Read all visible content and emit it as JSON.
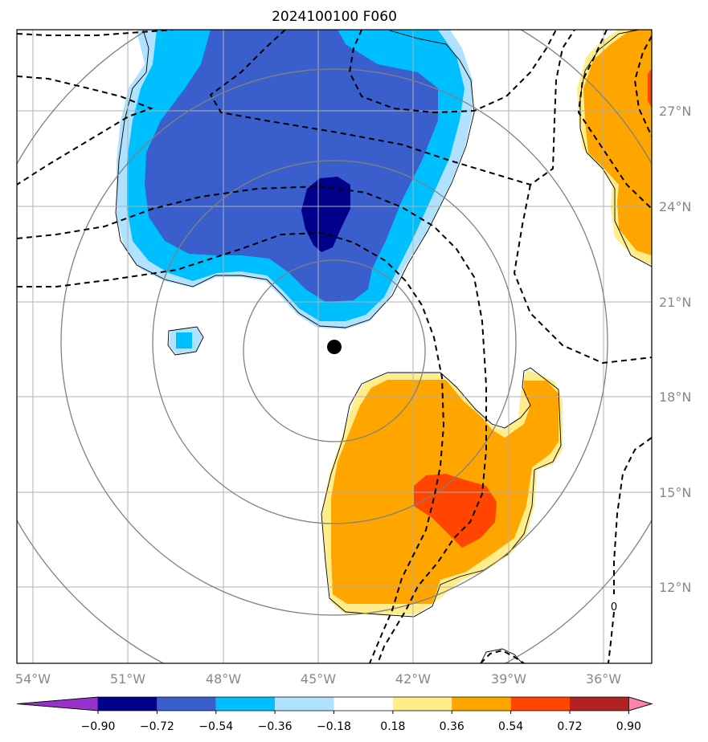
{
  "chart_data": {
    "type": "contour-map",
    "title": "2024100100 F060",
    "x_ticks": [
      "54°W",
      "51°W",
      "48°W",
      "45°W",
      "42°W",
      "39°W",
      "36°W"
    ],
    "y_ticks": [
      "27°N",
      "24°N",
      "21°N",
      "18°N",
      "15°N",
      "12°N"
    ],
    "contour_line_label": "0",
    "colorbar": {
      "levels": [
        -0.9,
        -0.72,
        -0.54,
        -0.36,
        -0.18,
        0.18,
        0.36,
        0.54,
        0.72,
        0.9
      ],
      "labels": [
        "−0.90",
        "−0.72",
        "−0.54",
        "−0.36",
        "−0.18",
        "0.18",
        "0.36",
        "0.54",
        "0.72",
        "0.90"
      ],
      "colors": [
        "#9932CC",
        "#00008B",
        "#3A5FCD",
        "#00BFFF",
        "#B0E2FF",
        "#FFFFFF",
        "#FFEC8B",
        "#FFA500",
        "#FF4500",
        "#B22222",
        "#FF82AB"
      ]
    },
    "storm_center": {
      "lon": -44.5,
      "lat": 19.6
    },
    "range_rings": 4,
    "grid": true
  }
}
